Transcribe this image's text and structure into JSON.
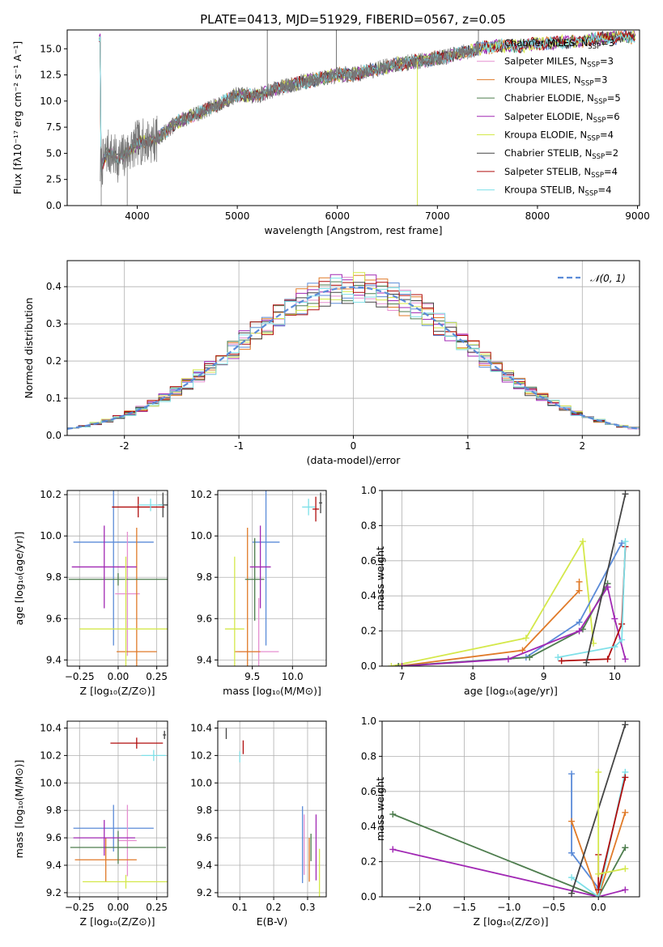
{
  "figure_title": "PLATE=0413, MJD=51929, FIBERID=0567, z=0.05",
  "colors": {
    "chabrier_miles": "#5b8bd8",
    "salpeter_miles": "#e58fd0",
    "kroupa_miles": "#e07a28",
    "chabrier_elodie": "#4e7d4e",
    "salpeter_elodie": "#a128b4",
    "kroupa_elodie": "#d4e84a",
    "chabrier_stelib": "#444444",
    "salpeter_stelib": "#b00d0d",
    "kroupa_stelib": "#7ee0e8",
    "data": "#777777",
    "normal_curve": "#5b8bd8"
  },
  "chart_data": [
    {
      "id": "spectrum",
      "type": "line",
      "title": "PLATE=0413, MJD=51929, FIBERID=0567, z=0.05",
      "xlabel": "wavelength [Angstrom, rest frame]",
      "ylabel": "Flux [fλ10⁻¹⁷ erg cm⁻² s⁻¹ A⁻¹]",
      "xlim": [
        3300,
        9020
      ],
      "ylim": [
        0,
        16.8
      ],
      "xticks": [
        4000,
        5000,
        6000,
        7000,
        8000,
        9000
      ],
      "yticks": [
        0.0,
        2.5,
        5.0,
        7.5,
        10.0,
        12.5,
        15.0
      ],
      "ytick_labels": [
        "0.0",
        "2.5",
        "5.0",
        "7.5",
        "10.0",
        "12.5",
        "15.0"
      ],
      "data_range": [
        3630,
        7420
      ],
      "continuum": [
        [
          3630,
          3.5
        ],
        [
          3700,
          5.2
        ],
        [
          3800,
          4.4
        ],
        [
          3900,
          5.0
        ],
        [
          4000,
          6.0
        ],
        [
          4200,
          6.4
        ],
        [
          4400,
          8.0
        ],
        [
          4600,
          8.8
        ],
        [
          4800,
          9.6
        ],
        [
          5000,
          10.6
        ],
        [
          5200,
          10.5
        ],
        [
          5400,
          11.2
        ],
        [
          5600,
          11.7
        ],
        [
          5800,
          12.1
        ],
        [
          6000,
          12.5
        ],
        [
          6200,
          12.6
        ],
        [
          6400,
          13.1
        ],
        [
          6600,
          13.5
        ],
        [
          6800,
          13.8
        ],
        [
          7000,
          14.1
        ],
        [
          7200,
          14.5
        ],
        [
          7400,
          15.0
        ],
        [
          7600,
          15.3
        ],
        [
          7800,
          15.2
        ],
        [
          8000,
          15.5
        ],
        [
          8200,
          15.6
        ],
        [
          8400,
          15.7
        ],
        [
          8600,
          16.0
        ],
        [
          8800,
          16.1
        ]
      ],
      "spikes": [
        [
          5300,
          16.8
        ],
        [
          5990,
          16.8
        ],
        [
          7410,
          16.8
        ]
      ],
      "dips": [
        [
          6800,
          0.0
        ],
        [
          3640,
          0.0
        ],
        [
          3900,
          0.0
        ]
      ],
      "legend": [
        {
          "label": "Chabrier MILES, N",
          "sub": "SSP",
          "tail": "=3"
        },
        {
          "label": "Salpeter MILES, N",
          "sub": "SSP",
          "tail": "=3"
        },
        {
          "label": "Kroupa MILES, N",
          "sub": "SSP",
          "tail": "=3"
        },
        {
          "label": "Chabrier ELODIE, N",
          "sub": "SSP",
          "tail": "=5"
        },
        {
          "label": "Salpeter ELODIE, N",
          "sub": "SSP",
          "tail": "=6"
        },
        {
          "label": "Kroupa ELODIE, N",
          "sub": "SSP",
          "tail": "=4"
        },
        {
          "label": "Chabrier STELIB, N",
          "sub": "SSP",
          "tail": "=2"
        },
        {
          "label": "Salpeter STELIB, N",
          "sub": "SSP",
          "tail": "=4"
        },
        {
          "label": "Kroupa STELIB, N",
          "sub": "SSP",
          "tail": "=4"
        }
      ],
      "legend_placement": "top-right"
    },
    {
      "id": "residuals",
      "type": "bar",
      "xlabel": "(data-model)/error",
      "ylabel": "Normed distribution",
      "xlim": [
        -2.5,
        2.5
      ],
      "ylim": [
        0,
        0.47
      ],
      "xticks": [
        -2,
        -1,
        0,
        1,
        2
      ],
      "yticks": [
        0.0,
        0.1,
        0.2,
        0.3,
        0.4
      ],
      "ytick_labels": [
        "0.0",
        "0.1",
        "0.2",
        "0.3",
        "0.4"
      ],
      "bin_width": 0.1,
      "legend": [
        {
          "label": "𝒩(0, 1)"
        }
      ],
      "legend_placement": "top-right"
    },
    {
      "id": "age_vs_Z",
      "type": "scatter",
      "xlabel": "Z [log₁₀(Z/Z⊙)]",
      "ylabel": "age  [log₁₀(age/yr)]",
      "xlim": [
        -0.33,
        0.32
      ],
      "ylim": [
        9.37,
        10.22
      ],
      "xticks": [
        -0.25,
        0.0,
        0.25
      ],
      "xtick_labels": [
        "−0.25",
        "0.00",
        "0.25"
      ],
      "yticks": [
        9.4,
        9.6,
        9.8,
        10.0,
        10.2
      ],
      "ytick_labels": [
        "9.4",
        "9.6",
        "9.8",
        "10.0",
        "10.2"
      ],
      "points": [
        {
          "model": "chabrier_miles",
          "x": -0.03,
          "xerr": 0.26,
          "y": 9.97,
          "yerr": 0.5
        },
        {
          "model": "salpeter_miles",
          "x": 0.06,
          "xerr": 0.08,
          "y": 9.72,
          "yerr": 0.3
        },
        {
          "model": "kroupa_miles",
          "x": 0.12,
          "xerr": 0.13,
          "y": 9.44,
          "yerr": 0.6
        },
        {
          "model": "chabrier_elodie",
          "x": 0.0,
          "xerr": 0.32,
          "y": 9.79,
          "yerr": 0.03
        },
        {
          "model": "salpeter_elodie",
          "x": -0.09,
          "xerr": 0.21,
          "y": 9.85,
          "yerr": 0.2
        },
        {
          "model": "kroupa_elodie",
          "x": 0.05,
          "xerr": 0.3,
          "y": 9.55,
          "yerr": 0.35
        },
        {
          "model": "chabrier_stelib",
          "x": 0.29,
          "xerr": 0.03,
          "y": 10.15,
          "yerr": 0.06
        },
        {
          "model": "salpeter_stelib",
          "x": 0.13,
          "xerr": 0.17,
          "y": 10.14,
          "yerr": 0.05
        },
        {
          "model": "kroupa_stelib",
          "x": 0.21,
          "xerr": 0.08,
          "y": 10.15,
          "yerr": 0.03
        }
      ]
    },
    {
      "id": "age_vs_mass",
      "type": "scatter",
      "xlabel": "mass [log₁₀(M/M⊙)]",
      "ylabel": "",
      "xlim": [
        9.07,
        10.42
      ],
      "ylim": [
        9.37,
        10.22
      ],
      "xticks": [
        9.5,
        10.0
      ],
      "xtick_labels": [
        "9.5",
        "10.0"
      ],
      "yticks": [
        9.4,
        9.6,
        9.8,
        10.0,
        10.2
      ],
      "ytick_labels": [
        "9.4",
        "9.6",
        "9.8",
        "10.0",
        "10.2"
      ],
      "points": [
        {
          "model": "chabrier_miles",
          "x": 9.67,
          "xerr": 0.17,
          "y": 9.97,
          "yerr": 0.5
        },
        {
          "model": "salpeter_miles",
          "x": 9.58,
          "xerr": 0.25,
          "y": 9.44,
          "yerr": 0.26
        },
        {
          "model": "kroupa_miles",
          "x": 9.44,
          "xerr": 0.16,
          "y": 9.44,
          "yerr": 0.6
        },
        {
          "model": "chabrier_elodie",
          "x": 9.53,
          "xerr": 0.12,
          "y": 9.79,
          "yerr": 0.2
        },
        {
          "model": "salpeter_elodie",
          "x": 9.6,
          "xerr": 0.13,
          "y": 9.85,
          "yerr": 0.2
        },
        {
          "model": "kroupa_elodie",
          "x": 9.28,
          "xerr": 0.12,
          "y": 9.55,
          "yerr": 0.35
        },
        {
          "model": "chabrier_stelib",
          "x": 10.35,
          "xerr": 0.02,
          "y": 10.16,
          "yerr": 0.05
        },
        {
          "model": "salpeter_stelib",
          "x": 10.29,
          "xerr": 0.04,
          "y": 10.13,
          "yerr": 0.06
        },
        {
          "model": "kroupa_stelib",
          "x": 10.2,
          "xerr": 0.08,
          "y": 10.14,
          "yerr": 0.04
        }
      ]
    },
    {
      "id": "weight_vs_age",
      "type": "line",
      "xlabel": "age  [log₁₀(age/yr)]",
      "ylabel": "mass weight",
      "xlim": [
        6.72,
        10.35
      ],
      "ylim": [
        0,
        1.0
      ],
      "xticks": [
        7,
        8,
        9,
        10
      ],
      "xtick_labels": [
        "7",
        "8",
        "9",
        "10"
      ],
      "yticks": [
        0.0,
        0.2,
        0.4,
        0.6,
        0.8,
        1.0
      ],
      "ytick_labels": [
        "0.0",
        "0.2",
        "0.4",
        "0.6",
        "0.8",
        "1.0"
      ],
      "series": [
        {
          "model": "kroupa_elodie",
          "points": [
            [
              6.85,
              0.0
            ],
            [
              8.75,
              0.16
            ],
            [
              9.55,
              0.71
            ],
            [
              9.7,
              0.13
            ]
          ]
        },
        {
          "model": "chabrier_miles",
          "points": [
            [
              6.95,
              0.0
            ],
            [
              8.75,
              0.05
            ],
            [
              9.5,
              0.25
            ],
            [
              10.1,
              0.7
            ]
          ]
        },
        {
          "model": "kroupa_miles",
          "points": [
            [
              6.95,
              0.0
            ],
            [
              8.7,
              0.09
            ],
            [
              9.5,
              0.43
            ],
            [
              9.5,
              0.48
            ]
          ]
        },
        {
          "model": "chabrier_elodie",
          "points": [
            [
              6.95,
              0.0
            ],
            [
              8.8,
              0.05
            ],
            [
              9.55,
              0.21
            ],
            [
              9.9,
              0.47
            ]
          ]
        },
        {
          "model": "salpeter_elodie",
          "points": [
            [
              7.0,
              0.0
            ],
            [
              8.5,
              0.04
            ],
            [
              9.5,
              0.2
            ],
            [
              9.9,
              0.45
            ],
            [
              10.0,
              0.27
            ],
            [
              10.15,
              0.04
            ]
          ]
        },
        {
          "model": "salpeter_stelib",
          "points": [
            [
              9.25,
              0.03
            ],
            [
              9.9,
              0.04
            ],
            [
              10.1,
              0.24
            ],
            [
              10.15,
              0.68
            ]
          ]
        },
        {
          "model": "kroupa_stelib",
          "points": [
            [
              9.2,
              0.05
            ],
            [
              10.0,
              0.11
            ],
            [
              10.1,
              0.15
            ],
            [
              10.15,
              0.71
            ]
          ]
        },
        {
          "model": "chabrier_stelib",
          "points": [
            [
              9.6,
              0.02
            ],
            [
              10.15,
              0.98
            ]
          ]
        }
      ]
    },
    {
      "id": "mass_vs_Z",
      "type": "scatter",
      "xlabel": "Z [log₁₀(Z/Z⊙)]",
      "ylabel": "mass [log₁₀(M/M⊙)]",
      "xlim": [
        -0.33,
        0.32
      ],
      "ylim": [
        9.17,
        10.45
      ],
      "xticks": [
        -0.25,
        0.0,
        0.25
      ],
      "xtick_labels": [
        "−0.25",
        "0.00",
        "0.25"
      ],
      "yticks": [
        9.2,
        9.4,
        9.6,
        9.8,
        10.0,
        10.2,
        10.4
      ],
      "ytick_labels": [
        "9.2",
        "9.4",
        "9.6",
        "9.8",
        "10.0",
        "10.2",
        "10.4"
      ],
      "points": [
        {
          "model": "chabrier_miles",
          "x": -0.03,
          "xerr": 0.26,
          "y": 9.67,
          "yerr": 0.17
        },
        {
          "model": "salpeter_miles",
          "x": 0.06,
          "xerr": 0.06,
          "y": 9.58,
          "yerr": 0.26
        },
        {
          "model": "kroupa_miles",
          "x": -0.08,
          "xerr": 0.2,
          "y": 9.44,
          "yerr": 0.16
        },
        {
          "model": "chabrier_elodie",
          "x": 0.0,
          "xerr": 0.31,
          "y": 9.53,
          "yerr": 0.12
        },
        {
          "model": "salpeter_elodie",
          "x": -0.09,
          "xerr": 0.2,
          "y": 9.6,
          "yerr": 0.13
        },
        {
          "model": "kroupa_elodie",
          "x": 0.05,
          "xerr": 0.28,
          "y": 9.28,
          "yerr": 0.05
        },
        {
          "model": "chabrier_stelib",
          "x": 0.3,
          "xerr": 0.01,
          "y": 10.35,
          "yerr": 0.03
        },
        {
          "model": "salpeter_stelib",
          "x": 0.12,
          "xerr": 0.17,
          "y": 10.29,
          "yerr": 0.04
        },
        {
          "model": "kroupa_stelib",
          "x": 0.23,
          "xerr": 0.08,
          "y": 10.2,
          "yerr": 0.04
        }
      ]
    },
    {
      "id": "mass_vs_ebv",
      "type": "scatter",
      "xlabel": "E(B-V)",
      "ylabel": "",
      "xlim": [
        0.035,
        0.355
      ],
      "ylim": [
        9.17,
        10.45
      ],
      "xticks": [
        0.1,
        0.2,
        0.3
      ],
      "xtick_labels": [
        "0.1",
        "0.2",
        "0.3"
      ],
      "yticks": [
        9.2,
        9.4,
        9.6,
        9.8,
        10.0,
        10.2,
        10.4
      ],
      "ytick_labels": [
        "9.2",
        "9.4",
        "9.6",
        "9.8",
        "10.0",
        "10.2",
        "10.4"
      ],
      "points": [
        {
          "model": "chabrier_miles",
          "x": 0.285,
          "xerr": 0,
          "y": 9.55,
          "yerr": 0.28
        },
        {
          "model": "salpeter_miles",
          "x": 0.29,
          "xerr": 0,
          "y": 9.55,
          "yerr": 0.22
        },
        {
          "model": "kroupa_miles",
          "x": 0.305,
          "xerr": 0,
          "y": 9.44,
          "yerr": 0.16
        },
        {
          "model": "chabrier_elodie",
          "x": 0.31,
          "xerr": 0,
          "y": 9.53,
          "yerr": 0.1
        },
        {
          "model": "salpeter_elodie",
          "x": 0.325,
          "xerr": 0,
          "y": 9.53,
          "yerr": 0.24
        },
        {
          "model": "kroupa_elodie",
          "x": 0.335,
          "xerr": 0,
          "y": 9.3,
          "yerr": 0.22
        },
        {
          "model": "chabrier_stelib",
          "x": 0.06,
          "xerr": 0,
          "y": 10.36,
          "yerr": 0.04
        },
        {
          "model": "salpeter_stelib",
          "x": 0.11,
          "xerr": 0,
          "y": 10.26,
          "yerr": 0.05
        },
        {
          "model": "kroupa_stelib",
          "x": 0.1,
          "xerr": 0,
          "y": 10.19,
          "yerr": 0.04
        }
      ]
    },
    {
      "id": "weight_vs_Z",
      "type": "line",
      "xlabel": "Z [log₁₀(Z/Z⊙)]",
      "ylabel": "mass weight",
      "xlim": [
        -2.42,
        0.46
      ],
      "ylim": [
        0,
        1.0
      ],
      "xticks": [
        -2.0,
        -1.5,
        -1.0,
        -0.5,
        0.0
      ],
      "xtick_labels": [
        "−2.0",
        "−1.5",
        "−1.0",
        "−0.5",
        "0.0"
      ],
      "yticks": [
        0.0,
        0.2,
        0.4,
        0.6,
        0.8,
        1.0
      ],
      "ytick_labels": [
        "0.0",
        "0.2",
        "0.4",
        "0.6",
        "0.8",
        "1.0"
      ],
      "series": [
        {
          "model": "chabrier_elodie",
          "points": [
            [
              -2.3,
              0.47
            ],
            [
              0.0,
              0.0
            ],
            [
              0.3,
              0.28
            ]
          ]
        },
        {
          "model": "salpeter_elodie",
          "points": [
            [
              -2.3,
              0.27
            ],
            [
              0.0,
              0.0
            ],
            [
              0.3,
              0.04
            ]
          ]
        },
        {
          "model": "chabrier_miles",
          "points": [
            [
              -0.3,
              0.7
            ],
            [
              -0.3,
              0.25
            ],
            [
              0.0,
              0.05
            ]
          ]
        },
        {
          "model": "kroupa_miles",
          "points": [
            [
              -0.3,
              0.43
            ],
            [
              0.0,
              0.0
            ],
            [
              0.3,
              0.48
            ]
          ]
        },
        {
          "model": "kroupa_stelib",
          "points": [
            [
              -0.3,
              0.11
            ],
            [
              0.0,
              0.0
            ],
            [
              0.3,
              0.71
            ]
          ]
        },
        {
          "model": "chabrier_stelib",
          "points": [
            [
              -0.3,
              0.02
            ],
            [
              0.3,
              0.98
            ]
          ]
        },
        {
          "model": "salpeter_stelib",
          "points": [
            [
              0.0,
              0.24
            ],
            [
              0.0,
              0.04
            ],
            [
              0.3,
              0.68
            ]
          ]
        },
        {
          "model": "kroupa_elodie",
          "points": [
            [
              0.0,
              0.71
            ],
            [
              0.0,
              0.13
            ],
            [
              0.3,
              0.16
            ]
          ]
        }
      ]
    }
  ]
}
